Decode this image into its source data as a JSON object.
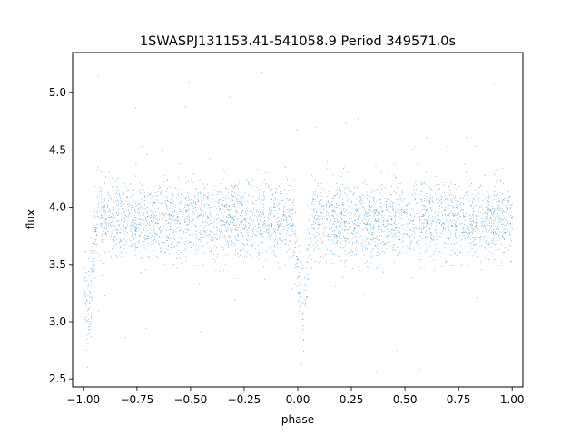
{
  "chart_data": {
    "type": "scatter",
    "title": "1SWASPJ131153.41-541058.9 Period 349571.0s",
    "xlabel": "phase",
    "ylabel": "flux",
    "xlim": [
      -1.05,
      1.05
    ],
    "ylim": [
      2.43,
      5.35
    ],
    "xticks": [
      -1.0,
      -0.75,
      -0.5,
      -0.25,
      0.0,
      0.25,
      0.5,
      0.75,
      1.0
    ],
    "xtick_labels": [
      "−1.00",
      "−0.75",
      "−0.50",
      "−0.25",
      "0.00",
      "0.25",
      "0.50",
      "0.75",
      "1.00"
    ],
    "yticks": [
      2.5,
      3.0,
      3.5,
      4.0,
      4.5,
      5.0
    ],
    "ytick_labels": [
      "2.5",
      "3.0",
      "3.5",
      "4.0",
      "4.5",
      "5.0"
    ],
    "grid": false,
    "legend": "none",
    "series": [
      {
        "marker": "point",
        "color": "#1f77b4",
        "phase_range": [
          -1.0,
          1.0
        ],
        "baseline_flux": 3.88,
        "flux_std": 0.17,
        "eclipse_centers": [
          -0.98,
          0.02
        ],
        "eclipse_min_flux": 2.95,
        "eclipse_half_width": 0.025,
        "outlier_flux_range": [
          2.55,
          5.25
        ],
        "approx_points": 30000
      }
    ]
  }
}
